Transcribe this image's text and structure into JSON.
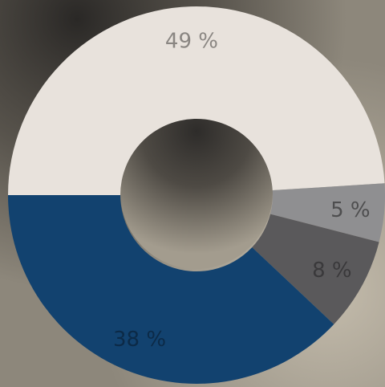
{
  "chart_data": {
    "type": "pie",
    "variant": "donut",
    "title": "",
    "categories": [
      "",
      "",
      "",
      ""
    ],
    "values": [
      49,
      5,
      8,
      38
    ],
    "labels": [
      "49 %",
      "5 %",
      "8 %",
      "38 %"
    ],
    "colors": [
      "#e8e2dc",
      "#8f8f91",
      "#5a595b",
      "#12426f"
    ],
    "label_colors": [
      "#8a8682",
      "#4e4e4f",
      "#3a393b",
      "#0c2a47"
    ],
    "start_angle_deg": 180,
    "direction": "clockwise",
    "legend": "none",
    "background": "cloudy-sky-photo"
  }
}
